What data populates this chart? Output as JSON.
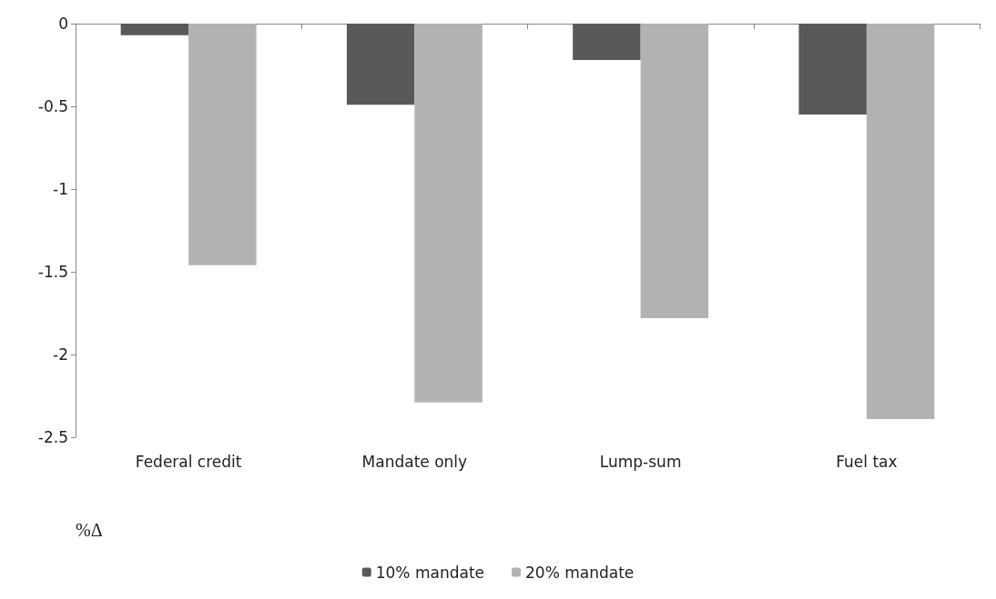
{
  "chart_data": {
    "type": "bar",
    "categories": [
      "Federal credit",
      "Mandate only",
      "Lump-sum",
      "Fuel tax"
    ],
    "series": [
      {
        "name": "10% mandate",
        "color": "#595959",
        "values": [
          -0.07,
          -0.49,
          -0.22,
          -0.55
        ]
      },
      {
        "name": "20% mandate",
        "color": "#b2b2b2",
        "values": [
          -1.46,
          -2.29,
          -1.78,
          -2.39
        ]
      }
    ],
    "annotations": [
      "%Δ"
    ],
    "ylim": [
      -2.5,
      0
    ],
    "yticks": [
      0,
      -0.5,
      -1,
      -1.5,
      -2,
      -2.5
    ],
    "grid": false,
    "legend": "bottom"
  }
}
